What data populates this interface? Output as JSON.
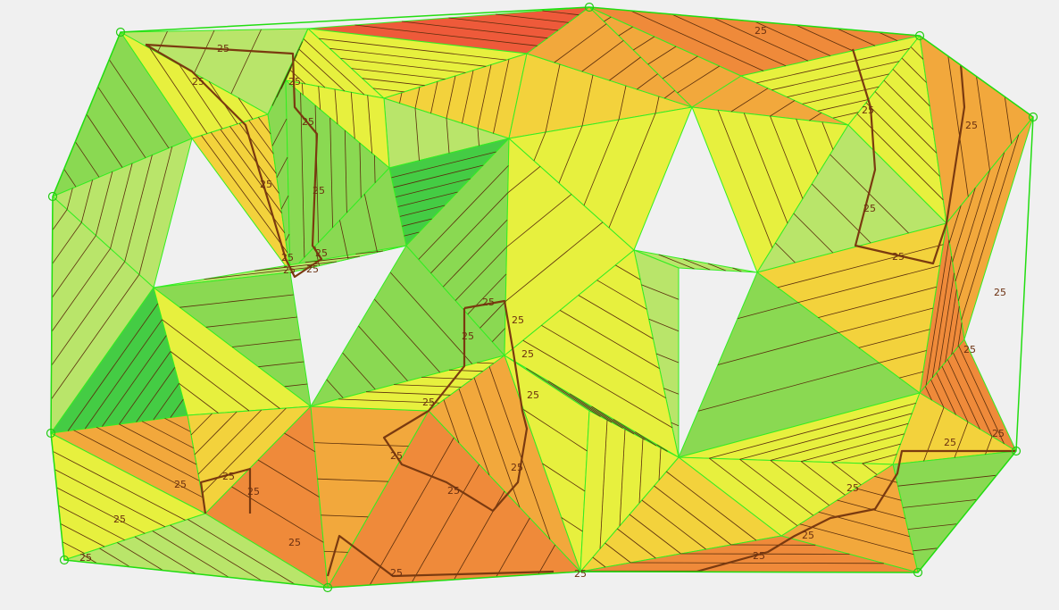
{
  "map": {
    "contour_label": "25",
    "colors": {
      "background": "#f0f0f0",
      "edge": "#33ee22",
      "contour": "#5a2e0c",
      "index_contour": "#7a3a10",
      "label": "#6b3010"
    },
    "elevation_palette": [
      "#44cc44",
      "#8ad952",
      "#b9e56a",
      "#e7f03e",
      "#f3d23c",
      "#f2a83c",
      "#ef8a3a",
      "#ee5a3a"
    ]
  }
}
